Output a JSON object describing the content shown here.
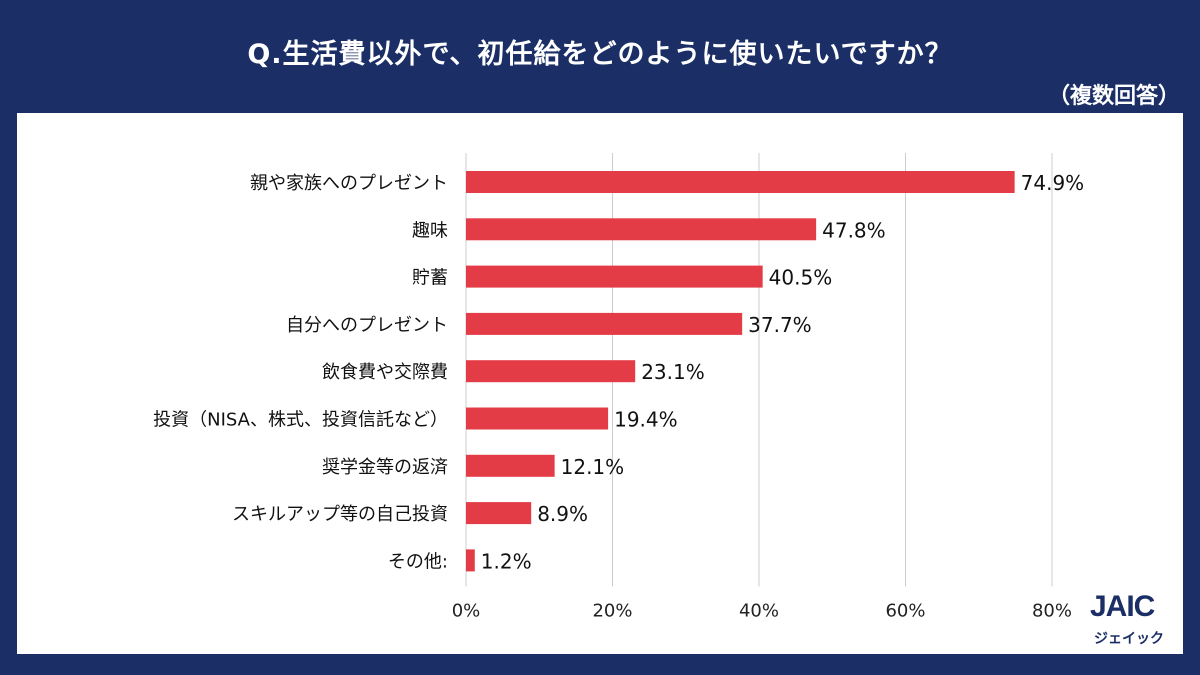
{
  "header": {
    "title": "Q.生活費以外で、初任給をどのように使いたいですか？",
    "subtitle": "（複数回答）"
  },
  "logo": {
    "mark": "JAIC",
    "sub": "ジェイック"
  },
  "colors": {
    "background": "#1b2f66",
    "bar": "#e43c46",
    "grid": "#cccccc"
  },
  "chart_data": {
    "type": "bar",
    "orientation": "horizontal",
    "categories": [
      "親や家族へのプレゼント",
      "趣味",
      "貯蓄",
      "自分へのプレゼント",
      "飲食費や交際費",
      "投資（NISA、株式、投資信託など）",
      "奨学金等の返済",
      "スキルアップ等の自己投資",
      "その他:"
    ],
    "values": [
      74.9,
      47.8,
      40.5,
      37.7,
      23.1,
      19.4,
      12.1,
      8.9,
      1.2
    ],
    "value_labels": [
      "74.9%",
      "47.8%",
      "40.5%",
      "37.7%",
      "23.1%",
      "19.4%",
      "12.1%",
      "8.9%",
      "1.2%"
    ],
    "xlim": [
      0,
      80
    ],
    "xticks": [
      0,
      20,
      40,
      60,
      80
    ],
    "xtick_labels": [
      "0%",
      "20%",
      "40%",
      "60%",
      "80%"
    ],
    "grid": true
  }
}
